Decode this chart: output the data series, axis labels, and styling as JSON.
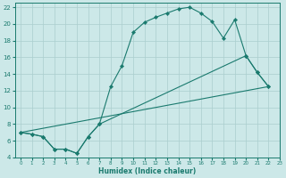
{
  "line1_x": [
    0,
    1,
    2,
    3,
    4,
    5,
    6,
    7,
    8,
    9,
    10,
    11,
    12,
    13,
    14,
    15,
    16,
    17,
    18,
    19,
    20,
    21,
    22
  ],
  "line1_y": [
    7.0,
    6.8,
    6.5,
    5.0,
    5.0,
    4.5,
    6.5,
    8.0,
    12.5,
    15.0,
    19.0,
    20.2,
    20.8,
    21.3,
    21.8,
    22.0,
    21.3,
    20.3,
    18.3,
    20.5,
    16.2,
    14.2,
    12.5
  ],
  "line2_x": [
    0,
    1,
    2,
    3,
    4,
    5,
    6,
    7,
    20,
    21,
    22
  ],
  "line2_y": [
    7.0,
    6.8,
    6.5,
    5.0,
    5.0,
    4.5,
    6.5,
    8.0,
    16.2,
    14.2,
    12.5
  ],
  "line3_x": [
    0,
    22
  ],
  "line3_y": [
    7.0,
    12.5
  ],
  "color": "#1a7a6e",
  "bg_color": "#cce8e8",
  "grid_color": "#aacece",
  "xlabel": "Humidex (Indice chaleur)",
  "xlim": [
    -0.5,
    23
  ],
  "ylim": [
    4,
    22.5
  ],
  "yticks": [
    4,
    6,
    8,
    10,
    12,
    14,
    16,
    18,
    20,
    22
  ],
  "xticks": [
    0,
    1,
    2,
    3,
    4,
    5,
    6,
    7,
    8,
    9,
    10,
    11,
    12,
    13,
    14,
    15,
    16,
    17,
    18,
    19,
    20,
    21,
    22,
    23
  ]
}
